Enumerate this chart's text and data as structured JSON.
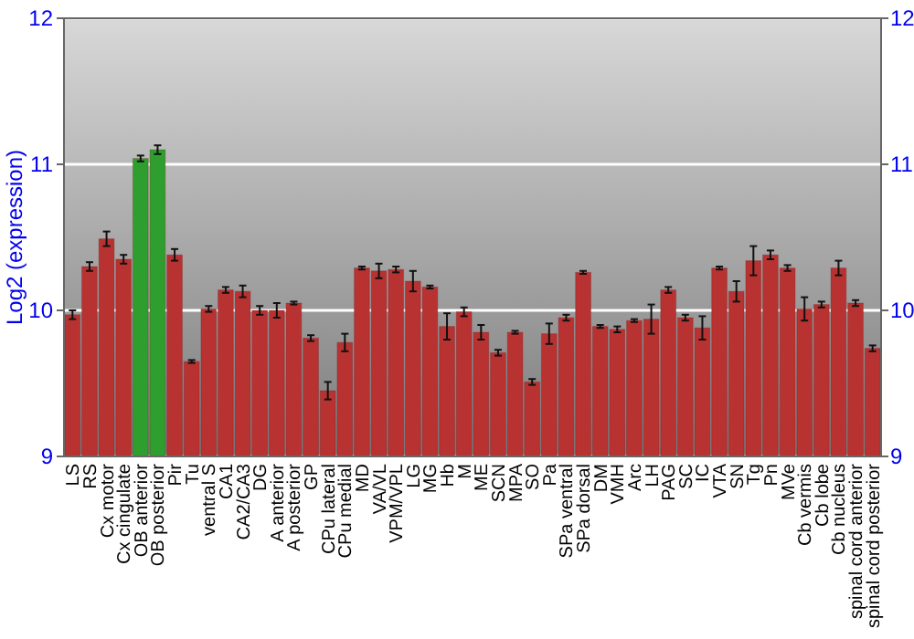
{
  "chart_data": {
    "type": "bar",
    "ylabel": "Log2 (expression)",
    "categories": [
      "LS",
      "RS",
      "Cx motor",
      "Cx cingulate",
      "OB anterior",
      "OB posterior",
      "Pir",
      "Tu",
      "ventral S",
      "CA1",
      "CA2/CA3",
      "DG",
      "A anterior",
      "A posterior",
      "GP",
      "CPu lateral",
      "CPu medial",
      "MD",
      "VA/VL",
      "VPM/VPL",
      "LG",
      "MG",
      "Hb",
      "M",
      "ME",
      "SCN",
      "MPA",
      "SO",
      "Pa",
      "SPa ventral",
      "SPa dorsal",
      "DM",
      "VMH",
      "Arc",
      "LH",
      "PAG",
      "SC",
      "IC",
      "VTA",
      "SN",
      "Tg",
      "Pn",
      "MVe",
      "Cb vermis",
      "Cb lobe",
      "Cb nucleus",
      "spinal cord anterior",
      "spinal cord posterior"
    ],
    "values": [
      9.97,
      10.3,
      10.49,
      10.35,
      11.04,
      11.1,
      10.38,
      9.65,
      10.01,
      10.14,
      10.13,
      10.0,
      10.0,
      10.05,
      9.81,
      9.45,
      9.78,
      10.29,
      10.27,
      10.28,
      10.2,
      10.16,
      9.89,
      9.99,
      9.85,
      9.71,
      9.85,
      9.51,
      9.84,
      9.95,
      10.26,
      9.89,
      9.87,
      9.93,
      9.94,
      10.14,
      9.95,
      9.88,
      10.29,
      10.13,
      10.34,
      10.38,
      10.29,
      10.01,
      10.04,
      10.29,
      10.05,
      9.74
    ],
    "errors": [
      0.03,
      0.03,
      0.05,
      0.03,
      0.02,
      0.03,
      0.04,
      0.01,
      0.02,
      0.02,
      0.04,
      0.03,
      0.05,
      0.01,
      0.02,
      0.06,
      0.06,
      0.01,
      0.05,
      0.02,
      0.07,
      0.01,
      0.09,
      0.03,
      0.05,
      0.02,
      0.01,
      0.02,
      0.07,
      0.02,
      0.01,
      0.01,
      0.02,
      0.01,
      0.1,
      0.02,
      0.02,
      0.08,
      0.01,
      0.07,
      0.1,
      0.03,
      0.02,
      0.08,
      0.02,
      0.05,
      0.02,
      0.02
    ],
    "colors": [
      "#b83232",
      "#b83232",
      "#b83232",
      "#b83232",
      "#2e9e2e",
      "#2e9e2e",
      "#b83232",
      "#b83232",
      "#b83232",
      "#b83232",
      "#b83232",
      "#b83232",
      "#b83232",
      "#b83232",
      "#b83232",
      "#b83232",
      "#b83232",
      "#b83232",
      "#b83232",
      "#b83232",
      "#b83232",
      "#b83232",
      "#b83232",
      "#b83232",
      "#b83232",
      "#b83232",
      "#b83232",
      "#b83232",
      "#b83232",
      "#b83232",
      "#b83232",
      "#b83232",
      "#b83232",
      "#b83232",
      "#b83232",
      "#b83232",
      "#b83232",
      "#b83232",
      "#b83232",
      "#b83232",
      "#b83232",
      "#b83232",
      "#b83232",
      "#b83232",
      "#b83232",
      "#b83232",
      "#b83232",
      "#b83232"
    ],
    "ylim": [
      9,
      12
    ],
    "yticks": [
      9,
      10,
      11,
      12
    ],
    "y2lim": [
      9,
      12
    ],
    "y2ticks": [
      9,
      10,
      11,
      12
    ],
    "grid": "y"
  }
}
